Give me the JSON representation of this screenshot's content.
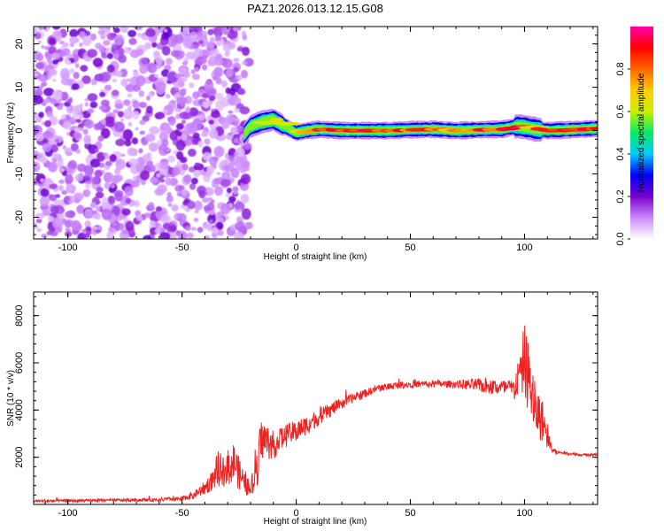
{
  "chart_data": [
    {
      "type": "heatmap",
      "title": "PAZ1.2026.013.12.15.G08",
      "xlabel": "Height of straight line (km)",
      "ylabel": "Frequency (Hz)",
      "xlim": [
        -115,
        132
      ],
      "ylim": [
        -25,
        24
      ],
      "xticks": [
        "-100",
        "-50",
        "0",
        "50",
        "100"
      ],
      "yticks": [
        "-20",
        "-10",
        "0",
        "10",
        "20"
      ],
      "colorbar": {
        "label": "Normalized spectral amplitude",
        "range": [
          0,
          1
        ],
        "ticks": [
          "0.0",
          "0.2",
          "0.4",
          "0.6",
          "0.8"
        ],
        "colors": [
          "#ffffff",
          "#cc88ff",
          "#7700cc",
          "#0000ff",
          "#00ccff",
          "#00ee66",
          "#ccee00",
          "#ffcc00",
          "#ff6600",
          "#ff0000",
          "#ff00aa"
        ]
      },
      "noise_region_x": [
        -115,
        -23
      ],
      "signal_track": {
        "x": [
          -23,
          -20,
          -15,
          -10,
          -5,
          0,
          5,
          10,
          20,
          30,
          40,
          50,
          60,
          70,
          80,
          90,
          97,
          100,
          105,
          110,
          120,
          132
        ],
        "freq": [
          -1,
          1,
          2,
          2.5,
          1,
          -0.5,
          0,
          0.3,
          0,
          0,
          0,
          0.2,
          0.3,
          0,
          0.2,
          0.3,
          1,
          0.8,
          0.3,
          0,
          0.2,
          0.5
        ],
        "peak_amplitude": [
          0.5,
          0.55,
          0.6,
          0.7,
          0.65,
          0.75,
          0.8,
          0.9,
          0.95,
          0.95,
          0.9,
          0.85,
          0.85,
          0.85,
          0.9,
          0.9,
          0.95,
          0.8,
          0.85,
          0.9,
          0.95,
          0.9
        ]
      }
    },
    {
      "type": "line",
      "xlabel": "Height of straight line (km)",
      "ylabel": "SNR (10 * v/v)",
      "xlim": [
        -115,
        132
      ],
      "ylim": [
        0,
        9000
      ],
      "xticks": [
        "-100",
        "-50",
        "0",
        "50",
        "100"
      ],
      "yticks": [
        "2000",
        "4000",
        "6000",
        "8000"
      ],
      "color": "#ee2222",
      "series": [
        {
          "name": "SNR",
          "x": [
            -115,
            -100,
            -80,
            -60,
            -50,
            -45,
            -40,
            -35,
            -30,
            -27,
            -25,
            -22,
            -20,
            -17,
            -15,
            -10,
            -5,
            0,
            5,
            10,
            15,
            20,
            25,
            30,
            35,
            40,
            50,
            60,
            70,
            80,
            85,
            90,
            95,
            98,
            100,
            102,
            105,
            108,
            110,
            112,
            115,
            120,
            125,
            132
          ],
          "y": [
            150,
            150,
            180,
            200,
            250,
            400,
            700,
            1200,
            1600,
            1800,
            1300,
            900,
            500,
            1900,
            2800,
            2500,
            2900,
            3100,
            3400,
            3700,
            4000,
            4300,
            4500,
            4700,
            4900,
            5000,
            5100,
            5100,
            5100,
            5050,
            5000,
            4950,
            4900,
            5500,
            6200,
            5200,
            4000,
            3500,
            3000,
            2300,
            2200,
            2150,
            2100,
            2100
          ],
          "noise_amplitude": [
            60,
            60,
            60,
            80,
            100,
            150,
            300,
            500,
            700,
            900,
            700,
            500,
            300,
            1200,
            900,
            600,
            500,
            450,
            400,
            350,
            300,
            250,
            200,
            180,
            160,
            150,
            150,
            150,
            160,
            300,
            350,
            350,
            400,
            900,
            1600,
            1500,
            1100,
            900,
            600,
            200,
            60,
            60,
            60,
            60
          ]
        }
      ]
    }
  ]
}
